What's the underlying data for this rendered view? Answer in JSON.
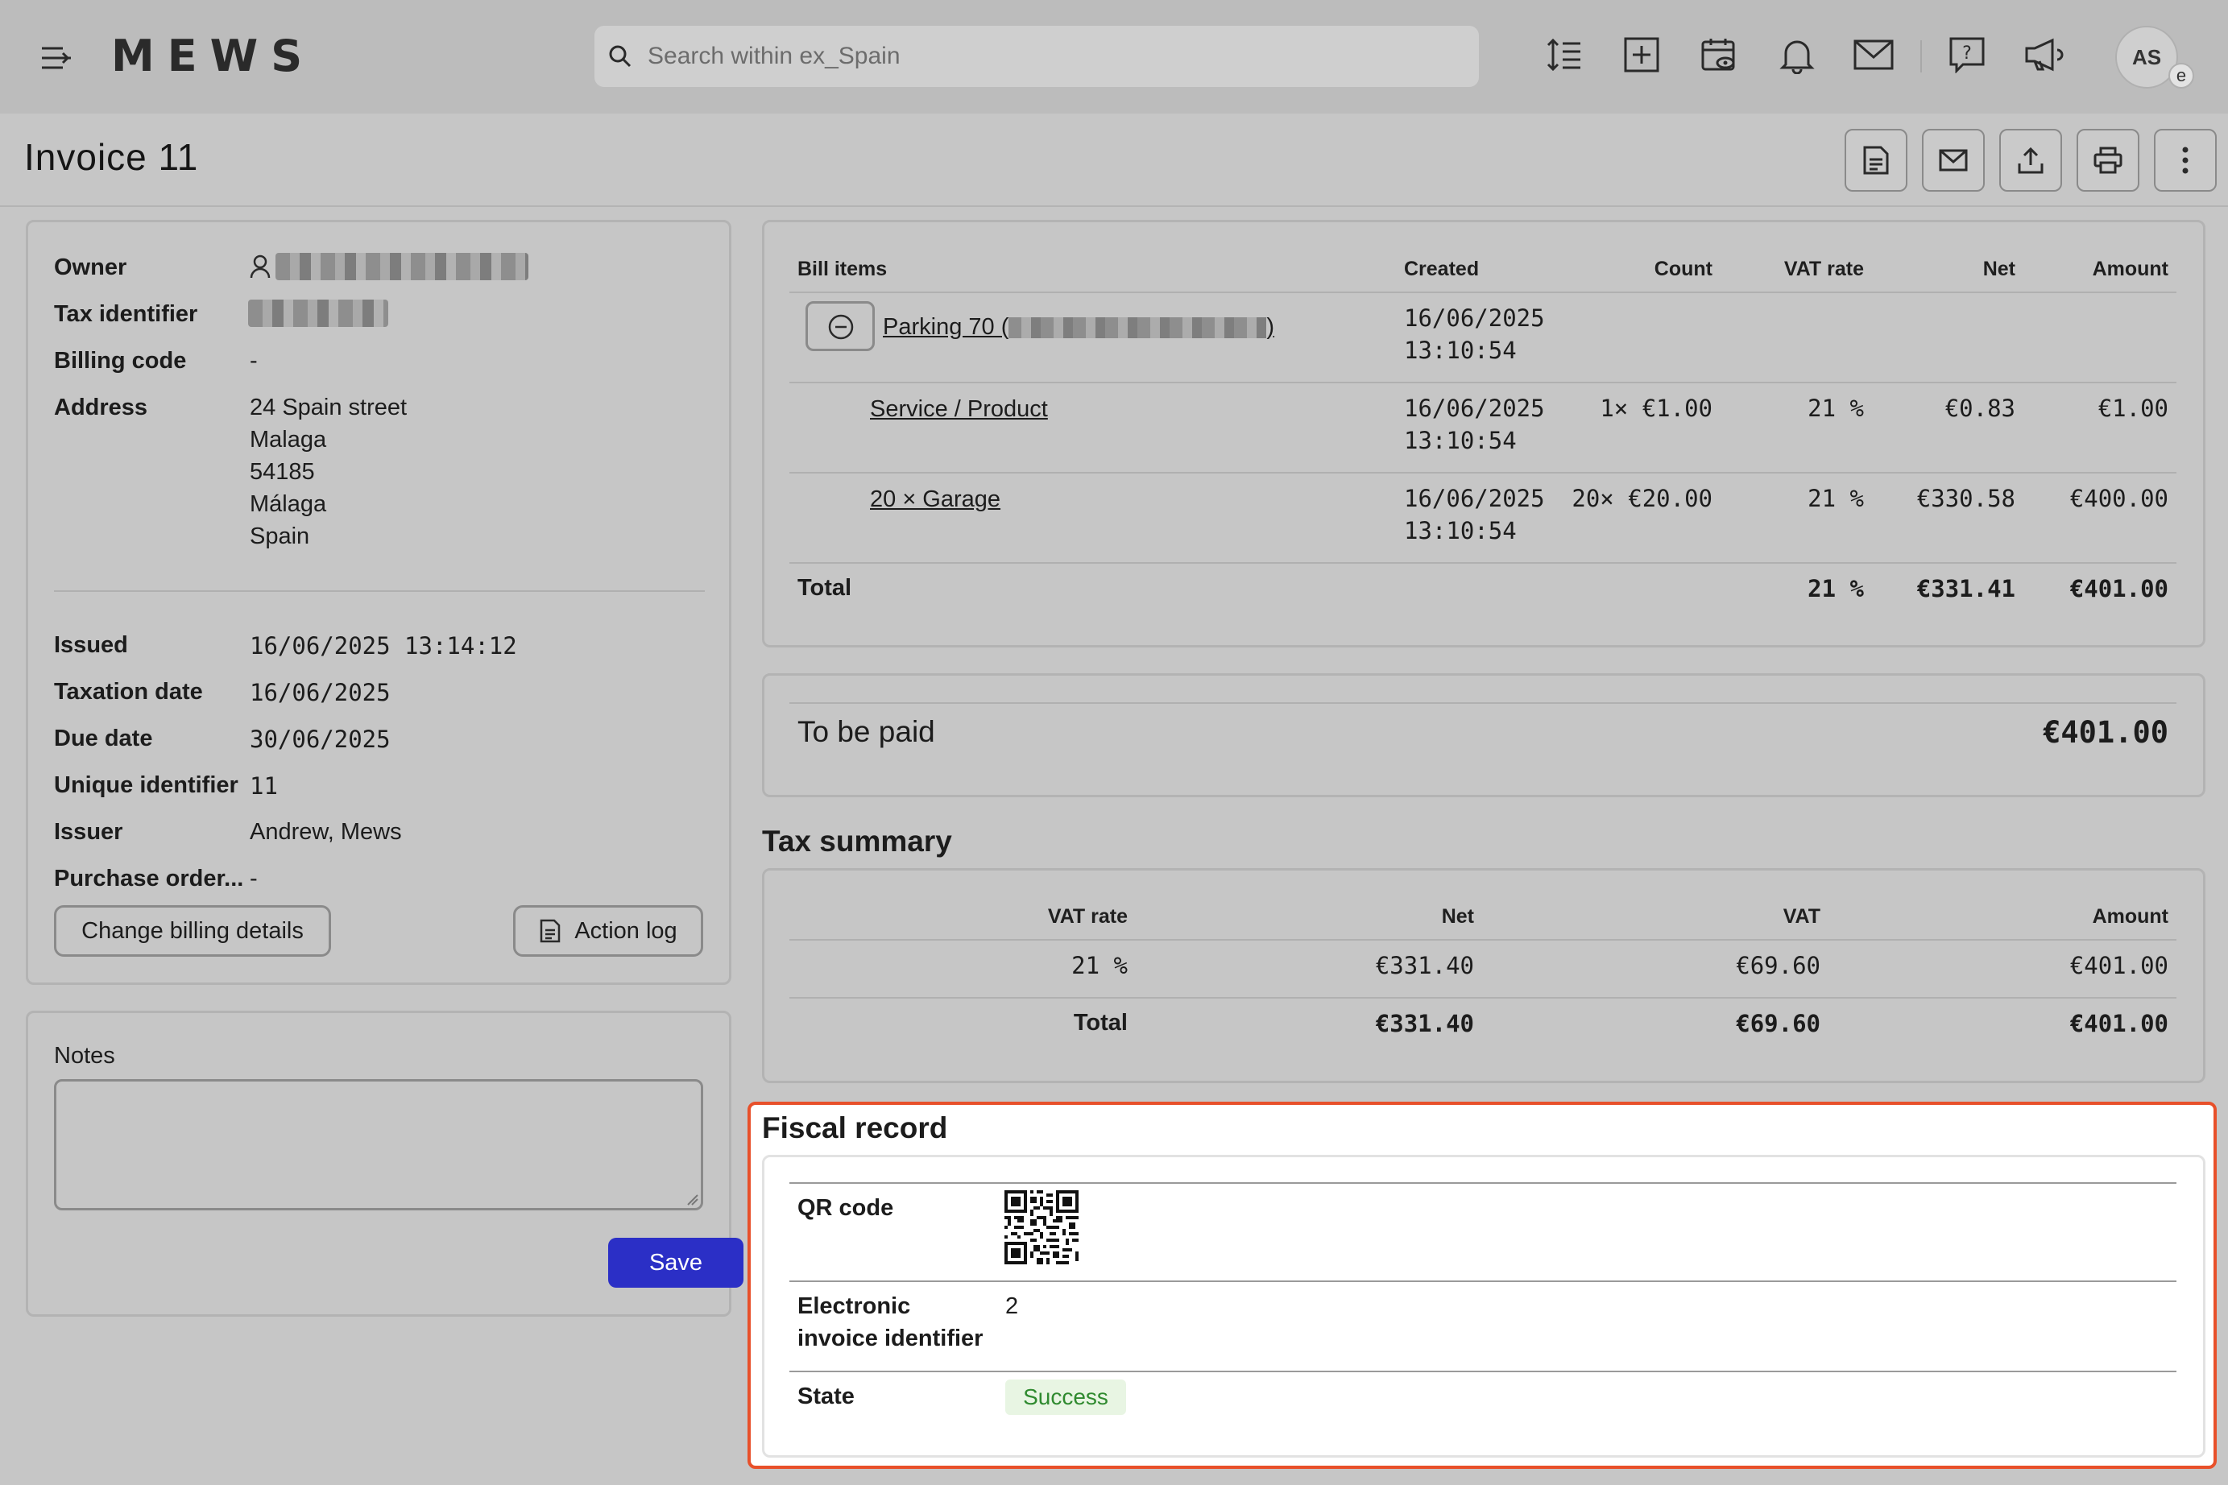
{
  "app": {
    "logo": "MEWS"
  },
  "search": {
    "placeholder": "Search within ex_Spain"
  },
  "user": {
    "initials": "AS",
    "badge": "e"
  },
  "page": {
    "title": "Invoice 11"
  },
  "details": {
    "owner_label": "Owner",
    "tax_identifier_label": "Tax identifier",
    "billing_code_label": "Billing code",
    "billing_code_value": "-",
    "address_label": "Address",
    "address_lines": [
      "24 Spain street",
      "Malaga",
      "54185",
      "Málaga",
      "Spain"
    ],
    "issued_label": "Issued",
    "issued_value": "16/06/2025 13:14:12",
    "taxation_date_label": "Taxation date",
    "taxation_date_value": "16/06/2025",
    "due_date_label": "Due date",
    "due_date_value": "30/06/2025",
    "unique_identifier_label": "Unique identifier",
    "unique_identifier_value": "11",
    "issuer_label": "Issuer",
    "issuer_value": "Andrew, Mews",
    "purchase_order_label": "Purchase order...",
    "purchase_order_value": "-",
    "change_billing_label": "Change billing details",
    "action_log_label": "Action log"
  },
  "notes": {
    "label": "Notes",
    "value": "",
    "save_label": "Save"
  },
  "bill_items": {
    "headers": {
      "item": "Bill items",
      "created": "Created",
      "count": "Count",
      "vat_rate": "VAT rate",
      "net": "Net",
      "amount": "Amount"
    },
    "group": {
      "label": "Parking 70 (",
      "label_end": ")",
      "created_date": "16/06/2025",
      "created_time": "13:10:54"
    },
    "rows": [
      {
        "name": "Service / Product",
        "created_date": "16/06/2025",
        "created_time": "13:10:54",
        "count": "1× €1.00",
        "vat_rate": "21 %",
        "net": "€0.83",
        "amount": "€1.00"
      },
      {
        "name": "20 × Garage",
        "created_date": "16/06/2025",
        "created_time": "13:10:54",
        "count": "20× €20.00",
        "vat_rate": "21 %",
        "net": "€330.58",
        "amount": "€400.00"
      }
    ],
    "total": {
      "label": "Total",
      "vat_rate": "21 %",
      "net": "€331.41",
      "amount": "€401.00"
    }
  },
  "to_be_paid": {
    "label": "To be paid",
    "amount": "€401.00"
  },
  "tax_summary": {
    "title": "Tax summary",
    "headers": {
      "vat_rate": "VAT rate",
      "net": "Net",
      "vat": "VAT",
      "amount": "Amount"
    },
    "row": {
      "vat_rate": "21 %",
      "net": "€331.40",
      "vat": "€69.60",
      "amount": "€401.00"
    },
    "total": {
      "label": "Total",
      "net": "€331.40",
      "vat": "€69.60",
      "amount": "€401.00"
    }
  },
  "fiscal_record": {
    "title": "Fiscal record",
    "qr_label": "QR code",
    "einvoice_label_1": "Electronic",
    "einvoice_label_2": "invoice identifier",
    "einvoice_value": "2",
    "state_label": "State",
    "state_value": "Success",
    "state_color": "#2f8a2f"
  },
  "colors": {
    "primary": "#2b2fc6",
    "highlight": "#e8502a"
  }
}
